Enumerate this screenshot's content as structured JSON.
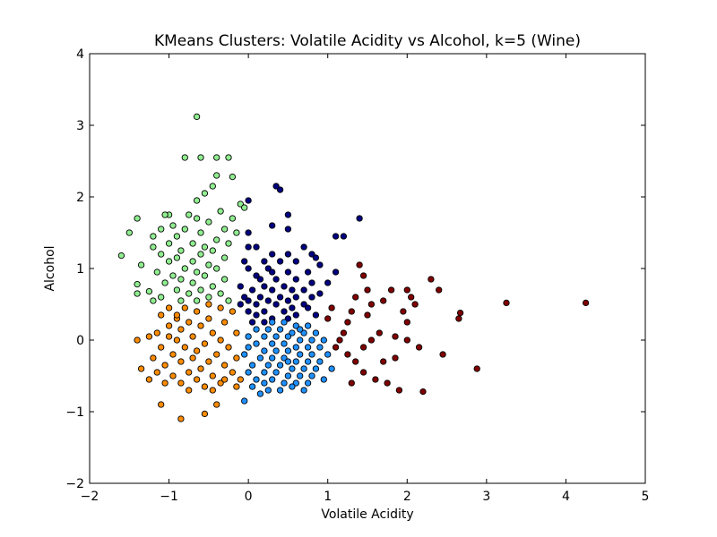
{
  "chart_data": {
    "type": "scatter",
    "title": "KMeans Clusters: Volatile Acidity vs Alcohol, k=5 (Wine)",
    "xlabel": "Volatile Acidity",
    "ylabel": "Alcohol",
    "xlim": [
      -2,
      5
    ],
    "ylim": [
      -2,
      4
    ],
    "xticks": [
      -2,
      -1,
      0,
      1,
      2,
      3,
      4,
      5
    ],
    "yticks": [
      -2,
      -1,
      0,
      1,
      2,
      3,
      4
    ],
    "xtick_labels": [
      "−2",
      "−1",
      "0",
      "1",
      "2",
      "3",
      "4",
      "5"
    ],
    "ytick_labels": [
      "−2",
      "−1",
      "0",
      "1",
      "2",
      "3",
      "4"
    ],
    "grid": false,
    "legend": "none",
    "series": [
      {
        "color": "#000080",
        "points": [
          [
            0.35,
            2.15
          ],
          [
            0.4,
            2.1
          ],
          [
            0.0,
            1.95
          ],
          [
            0.5,
            1.75
          ],
          [
            1.4,
            1.7
          ],
          [
            0.3,
            1.6
          ],
          [
            0.5,
            1.55
          ],
          [
            0.0,
            1.5
          ],
          [
            1.2,
            1.45
          ],
          [
            1.1,
            1.45
          ],
          [
            0.1,
            1.3
          ],
          [
            0.0,
            1.3
          ],
          [
            0.7,
            1.3
          ],
          [
            0.3,
            1.2
          ],
          [
            0.5,
            1.2
          ],
          [
            0.8,
            1.2
          ],
          [
            0.85,
            1.15
          ],
          [
            0.2,
            1.1
          ],
          [
            -0.05,
            1.1
          ],
          [
            0.4,
            1.1
          ],
          [
            0.6,
            1.1
          ],
          [
            0.9,
            1.05
          ],
          [
            0.0,
            1.0
          ],
          [
            0.25,
            1.0
          ],
          [
            0.3,
            0.95
          ],
          [
            0.5,
            0.95
          ],
          [
            0.75,
            0.95
          ],
          [
            1.1,
            0.95
          ],
          [
            0.1,
            0.9
          ],
          [
            0.15,
            0.85
          ],
          [
            0.35,
            0.85
          ],
          [
            0.6,
            0.85
          ],
          [
            0.8,
            0.8
          ],
          [
            1.0,
            0.8
          ],
          [
            -0.1,
            0.75
          ],
          [
            0.2,
            0.75
          ],
          [
            0.45,
            0.75
          ],
          [
            0.7,
            0.7
          ],
          [
            0.05,
            0.7
          ],
          [
            0.3,
            0.7
          ],
          [
            0.55,
            0.7
          ],
          [
            0.9,
            0.65
          ],
          [
            -0.05,
            0.6
          ],
          [
            0.15,
            0.6
          ],
          [
            0.4,
            0.6
          ],
          [
            0.6,
            0.6
          ],
          [
            0.8,
            0.6
          ],
          [
            0.0,
            0.55
          ],
          [
            0.25,
            0.55
          ],
          [
            0.5,
            0.55
          ],
          [
            0.7,
            0.5
          ],
          [
            -0.1,
            0.5
          ],
          [
            0.1,
            0.5
          ],
          [
            0.35,
            0.5
          ],
          [
            0.55,
            0.45
          ],
          [
            0.75,
            0.45
          ],
          [
            0.0,
            0.4
          ],
          [
            0.2,
            0.4
          ],
          [
            0.45,
            0.4
          ],
          [
            0.6,
            0.35
          ],
          [
            0.85,
            0.35
          ],
          [
            0.1,
            0.35
          ],
          [
            0.3,
            0.3
          ],
          [
            0.5,
            0.3
          ],
          [
            0.2,
            0.25
          ],
          [
            0.05,
            0.25
          ]
        ]
      },
      {
        "color": "#1e90ff",
        "points": [
          [
            0.3,
            0.25
          ],
          [
            0.45,
            0.25
          ],
          [
            0.6,
            0.2
          ],
          [
            0.75,
            0.2
          ],
          [
            0.1,
            0.15
          ],
          [
            0.25,
            0.15
          ],
          [
            0.4,
            0.15
          ],
          [
            0.55,
            0.1
          ],
          [
            0.7,
            0.1
          ],
          [
            0.85,
            0.1
          ],
          [
            0.0,
            0.05
          ],
          [
            0.2,
            0.05
          ],
          [
            0.35,
            0.05
          ],
          [
            0.5,
            0.05
          ],
          [
            0.65,
            0.0
          ],
          [
            0.8,
            0.0
          ],
          [
            0.95,
            0.0
          ],
          [
            0.1,
            -0.05
          ],
          [
            0.3,
            -0.05
          ],
          [
            0.45,
            -0.05
          ],
          [
            0.6,
            -0.1
          ],
          [
            0.75,
            -0.1
          ],
          [
            0.9,
            -0.1
          ],
          [
            0.0,
            -0.1
          ],
          [
            0.2,
            -0.15
          ],
          [
            0.35,
            -0.15
          ],
          [
            0.5,
            -0.15
          ],
          [
            0.65,
            -0.2
          ],
          [
            0.8,
            -0.2
          ],
          [
            1.0,
            -0.2
          ],
          [
            -0.05,
            -0.2
          ],
          [
            0.15,
            -0.25
          ],
          [
            0.3,
            -0.25
          ],
          [
            0.45,
            -0.25
          ],
          [
            0.6,
            -0.3
          ],
          [
            0.75,
            -0.3
          ],
          [
            0.9,
            -0.3
          ],
          [
            0.05,
            -0.35
          ],
          [
            0.25,
            -0.35
          ],
          [
            0.4,
            -0.35
          ],
          [
            0.55,
            -0.4
          ],
          [
            0.7,
            -0.4
          ],
          [
            0.85,
            -0.4
          ],
          [
            1.05,
            -0.4
          ],
          [
            0.0,
            -0.45
          ],
          [
            0.2,
            -0.45
          ],
          [
            0.35,
            -0.45
          ],
          [
            0.5,
            -0.5
          ],
          [
            0.65,
            -0.5
          ],
          [
            0.8,
            -0.5
          ],
          [
            0.1,
            -0.55
          ],
          [
            0.3,
            -0.55
          ],
          [
            0.45,
            -0.6
          ],
          [
            0.6,
            -0.6
          ],
          [
            0.75,
            -0.6
          ],
          [
            0.95,
            -0.55
          ],
          [
            0.05,
            -0.65
          ],
          [
            0.25,
            -0.7
          ],
          [
            0.4,
            -0.7
          ],
          [
            0.55,
            -0.65
          ],
          [
            0.7,
            -0.7
          ],
          [
            0.15,
            -0.75
          ],
          [
            -0.05,
            -0.85
          ],
          [
            0.2,
            -0.6
          ],
          [
            0.5,
            -0.3
          ],
          [
            0.65,
            0.15
          ]
        ]
      },
      {
        "color": "#90ee90",
        "points": [
          [
            -0.65,
            3.12
          ],
          [
            -0.25,
            2.55
          ],
          [
            -0.6,
            2.55
          ],
          [
            -0.4,
            2.55
          ],
          [
            -0.8,
            2.55
          ],
          [
            -0.4,
            2.3
          ],
          [
            -0.2,
            2.28
          ],
          [
            -0.45,
            2.15
          ],
          [
            -0.55,
            2.05
          ],
          [
            -0.65,
            1.95
          ],
          [
            -0.1,
            1.9
          ],
          [
            -0.05,
            1.85
          ],
          [
            -0.35,
            1.8
          ],
          [
            -1.0,
            1.75
          ],
          [
            -1.05,
            1.75
          ],
          [
            -0.75,
            1.75
          ],
          [
            -0.2,
            1.7
          ],
          [
            -1.4,
            1.7
          ],
          [
            -0.65,
            1.7
          ],
          [
            -0.5,
            1.65
          ],
          [
            -0.95,
            1.6
          ],
          [
            -1.1,
            1.55
          ],
          [
            -0.8,
            1.55
          ],
          [
            -0.3,
            1.55
          ],
          [
            -1.5,
            1.5
          ],
          [
            -0.6,
            1.5
          ],
          [
            -0.15,
            1.5
          ],
          [
            -0.9,
            1.45
          ],
          [
            -1.2,
            1.45
          ],
          [
            -0.4,
            1.4
          ],
          [
            -0.7,
            1.35
          ],
          [
            -1.0,
            1.35
          ],
          [
            -0.25,
            1.35
          ],
          [
            -0.55,
            1.3
          ],
          [
            -1.2,
            1.3
          ],
          [
            -0.85,
            1.25
          ],
          [
            -0.45,
            1.25
          ],
          [
            -1.1,
            1.2
          ],
          [
            -0.6,
            1.2
          ],
          [
            -1.6,
            1.18
          ],
          [
            -0.9,
            1.15
          ],
          [
            -0.3,
            1.15
          ],
          [
            -1.0,
            1.1
          ],
          [
            -0.7,
            1.1
          ],
          [
            -0.5,
            1.05
          ],
          [
            -1.35,
            1.05
          ],
          [
            -0.8,
            1.0
          ],
          [
            -0.4,
            1.0
          ],
          [
            -1.15,
            0.95
          ],
          [
            -0.65,
            0.95
          ],
          [
            -0.95,
            0.9
          ],
          [
            -0.55,
            0.9
          ],
          [
            -0.3,
            0.85
          ],
          [
            -0.85,
            0.85
          ],
          [
            -1.05,
            0.8
          ],
          [
            -0.7,
            0.8
          ],
          [
            -1.4,
            0.78
          ],
          [
            -0.45,
            0.75
          ],
          [
            -0.9,
            0.7
          ],
          [
            -1.25,
            0.68
          ],
          [
            -0.6,
            0.7
          ],
          [
            -0.75,
            0.65
          ],
          [
            -1.4,
            0.65
          ],
          [
            -0.35,
            0.65
          ],
          [
            -1.1,
            0.6
          ],
          [
            -0.5,
            0.6
          ],
          [
            -0.85,
            0.55
          ],
          [
            -1.2,
            0.55
          ],
          [
            -0.65,
            0.55
          ],
          [
            -0.25,
            0.55
          ]
        ]
      },
      {
        "color": "#ff8c00",
        "points": [
          [
            -0.5,
            0.5
          ],
          [
            -0.8,
            0.45
          ],
          [
            -1.0,
            0.45
          ],
          [
            -0.35,
            0.45
          ],
          [
            -0.65,
            0.4
          ],
          [
            -1.1,
            0.35
          ],
          [
            -0.2,
            0.4
          ],
          [
            -0.9,
            0.3
          ],
          [
            -0.5,
            0.3
          ],
          [
            -0.75,
            0.25
          ],
          [
            -0.3,
            0.25
          ],
          [
            -1.0,
            0.2
          ],
          [
            -0.6,
            0.2
          ],
          [
            -0.85,
            0.15
          ],
          [
            -0.45,
            0.1
          ],
          [
            -1.15,
            0.1
          ],
          [
            -0.15,
            0.1
          ],
          [
            -0.7,
            0.05
          ],
          [
            -1.0,
            0.05
          ],
          [
            -0.35,
            0.0
          ],
          [
            -0.9,
            0.0
          ],
          [
            -1.4,
            0.0
          ],
          [
            -0.55,
            -0.05
          ],
          [
            -0.8,
            -0.1
          ],
          [
            -0.25,
            -0.1
          ],
          [
            -1.1,
            -0.1
          ],
          [
            -0.65,
            -0.15
          ],
          [
            -0.4,
            -0.2
          ],
          [
            -0.95,
            -0.2
          ],
          [
            -1.2,
            -0.25
          ],
          [
            -0.7,
            -0.25
          ],
          [
            -0.15,
            -0.25
          ],
          [
            -0.5,
            -0.3
          ],
          [
            -0.85,
            -0.3
          ],
          [
            -1.05,
            -0.35
          ],
          [
            -0.3,
            -0.35
          ],
          [
            -0.6,
            -0.4
          ],
          [
            -1.35,
            -0.4
          ],
          [
            -0.75,
            -0.45
          ],
          [
            -0.2,
            -0.45
          ],
          [
            -1.15,
            -0.45
          ],
          [
            -0.45,
            -0.5
          ],
          [
            -0.95,
            -0.5
          ],
          [
            -0.65,
            -0.55
          ],
          [
            -1.25,
            -0.55
          ],
          [
            -0.35,
            -0.6
          ],
          [
            -0.85,
            -0.6
          ],
          [
            -1.05,
            -0.6
          ],
          [
            -0.55,
            -0.65
          ],
          [
            -0.15,
            -0.65
          ],
          [
            -0.75,
            -0.7
          ],
          [
            -0.45,
            -0.7
          ],
          [
            -1.1,
            -0.9
          ],
          [
            -0.4,
            -0.9
          ],
          [
            -0.55,
            -1.03
          ],
          [
            -0.85,
            -1.1
          ],
          [
            -0.3,
            -0.55
          ],
          [
            -0.9,
            0.35
          ],
          [
            -1.25,
            0.05
          ],
          [
            -0.1,
            -0.55
          ]
        ]
      },
      {
        "color": "#800000",
        "points": [
          [
            3.25,
            0.52
          ],
          [
            4.25,
            0.52
          ],
          [
            2.88,
            -0.4
          ],
          [
            2.67,
            0.38
          ],
          [
            2.3,
            0.85
          ],
          [
            2.4,
            0.7
          ],
          [
            2.45,
            -0.2
          ],
          [
            2.2,
            -0.72
          ],
          [
            2.0,
            0.7
          ],
          [
            2.05,
            0.6
          ],
          [
            2.0,
            0.25
          ],
          [
            2.0,
            0.0
          ],
          [
            1.8,
            0.7
          ],
          [
            1.7,
            0.55
          ],
          [
            1.55,
            0.5
          ],
          [
            1.5,
            0.35
          ],
          [
            1.4,
            1.05
          ],
          [
            1.45,
            0.9
          ],
          [
            1.35,
            0.6
          ],
          [
            1.3,
            0.4
          ],
          [
            1.25,
            0.25
          ],
          [
            1.2,
            0.1
          ],
          [
            1.15,
            0.0
          ],
          [
            1.1,
            -0.1
          ],
          [
            1.25,
            -0.2
          ],
          [
            1.35,
            -0.3
          ],
          [
            1.45,
            -0.45
          ],
          [
            1.6,
            -0.55
          ],
          [
            1.75,
            -0.6
          ],
          [
            1.9,
            -0.7
          ],
          [
            1.05,
            0.45
          ],
          [
            1.55,
            0.0
          ],
          [
            1.85,
            -0.25
          ],
          [
            1.65,
            0.1
          ],
          [
            2.15,
            -0.1
          ],
          [
            1.95,
            0.4
          ],
          [
            1.5,
            0.7
          ],
          [
            1.3,
            -0.6
          ],
          [
            1.0,
            0.3
          ],
          [
            1.7,
            -0.3
          ],
          [
            1.45,
            -0.1
          ],
          [
            2.65,
            0.3
          ],
          [
            1.85,
            0.05
          ],
          [
            2.1,
            0.5
          ]
        ]
      }
    ]
  }
}
